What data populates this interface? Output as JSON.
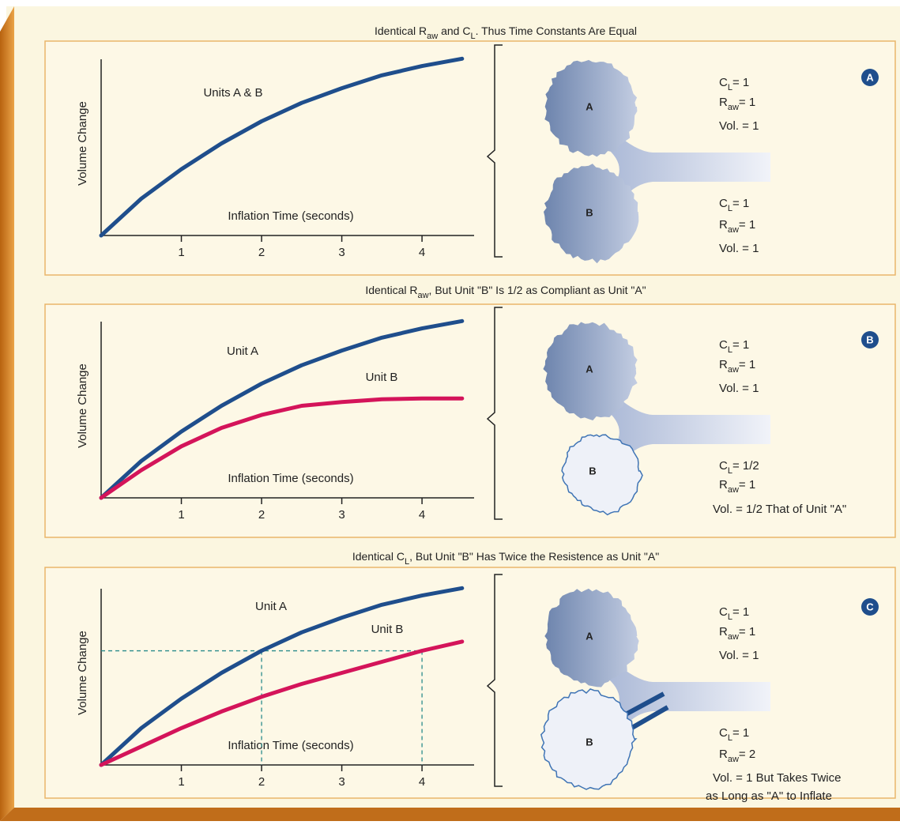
{
  "chart_data": [
    {
      "type": "line",
      "title": [
        "Identical R",
        "aw",
        " and C",
        "L",
        ". Thus Time Constants Are Equal"
      ],
      "y_label": "Volume Change",
      "x_label": "Inflation Time (seconds)",
      "x": [
        0,
        0.5,
        1,
        1.5,
        2,
        2.5,
        3,
        3.5,
        4,
        4.5
      ],
      "series": [
        {
          "name": "Units A & B",
          "color": "#1f4e8c",
          "values": [
            0,
            0.2,
            0.36,
            0.5,
            0.62,
            0.72,
            0.8,
            0.87,
            0.92,
            0.96
          ]
        }
      ],
      "xlim": [
        0,
        4.6
      ],
      "xticks": [
        1,
        2,
        3,
        4
      ],
      "ylim": [
        0,
        1
      ]
    },
    {
      "type": "line",
      "title": [
        "Identical R",
        "aw",
        ", But Unit \"B\" Is 1/2 as Compliant as Unit \"A\""
      ],
      "y_label": "Volume Change",
      "x_label": "Inflation Time (seconds)",
      "x": [
        0,
        0.5,
        1,
        1.5,
        2,
        2.5,
        3,
        3.5,
        4,
        4.5
      ],
      "series": [
        {
          "name": "Unit A",
          "color": "#1f4e8c",
          "values": [
            0,
            0.2,
            0.36,
            0.5,
            0.62,
            0.72,
            0.8,
            0.87,
            0.92,
            0.96
          ]
        },
        {
          "name": "Unit B",
          "color": "#d4145a",
          "values": [
            0,
            0.15,
            0.28,
            0.38,
            0.45,
            0.5,
            0.52,
            0.535,
            0.54,
            0.54
          ]
        }
      ],
      "xlim": [
        0,
        4.6
      ],
      "xticks": [
        1,
        2,
        3,
        4
      ],
      "ylim": [
        0,
        1
      ]
    },
    {
      "type": "line",
      "title": [
        "Identical C",
        "L",
        ", But Unit \"B\" Has Twice the Resistence as Unit \"A\""
      ],
      "y_label": "Volume Change",
      "x_label": "Inflation Time (seconds)",
      "x": [
        0,
        0.5,
        1,
        1.5,
        2,
        2.5,
        3,
        3.5,
        4,
        4.5
      ],
      "series": [
        {
          "name": "Unit A",
          "color": "#1f4e8c",
          "values": [
            0,
            0.2,
            0.36,
            0.5,
            0.62,
            0.72,
            0.8,
            0.87,
            0.92,
            0.96
          ]
        },
        {
          "name": "Unit  B",
          "color": "#d4145a",
          "values": [
            0,
            0.1,
            0.2,
            0.29,
            0.37,
            0.44,
            0.5,
            0.56,
            0.62,
            0.67
          ]
        }
      ],
      "reference": {
        "x": [
          2,
          4
        ],
        "y": 0.62
      },
      "xlim": [
        0,
        4.6
      ],
      "xticks": [
        1,
        2,
        3,
        4
      ],
      "ylim": [
        0,
        1
      ]
    }
  ],
  "diagrams": [
    {
      "badge": "A",
      "units": [
        {
          "label": "A",
          "params": [
            [
              "C",
              "L",
              "= 1"
            ],
            [
              "R",
              "aw",
              "= 1"
            ],
            [
              "Vol. = 1"
            ]
          ]
        },
        {
          "label": "B",
          "params": [
            [
              "C",
              "L",
              "= 1"
            ],
            [
              "R",
              "aw",
              "= 1"
            ],
            [
              "Vol. = 1"
            ]
          ]
        }
      ]
    },
    {
      "badge": "B",
      "units": [
        {
          "label": "A",
          "params": [
            [
              "C",
              "L",
              "= 1"
            ],
            [
              "R",
              "aw",
              "= 1"
            ],
            [
              "Vol. = 1"
            ]
          ]
        },
        {
          "label": "B",
          "params": [
            [
              "C",
              "L",
              "= 1/2"
            ],
            [
              "R",
              "aw",
              "= 1"
            ],
            [
              "Vol. = 1/2 That of Unit \"A\""
            ]
          ]
        }
      ]
    },
    {
      "badge": "C",
      "units": [
        {
          "label": "A",
          "params": [
            [
              "C",
              "L",
              "= 1"
            ],
            [
              "R",
              "aw",
              "= 1"
            ],
            [
              "Vol. = 1"
            ]
          ]
        },
        {
          "label": "B",
          "params": [
            [
              "C",
              "L",
              "= 1"
            ],
            [
              "R",
              "aw",
              "= 2"
            ],
            [
              "Vol. = 1 But Takes Twice"
            ],
            [
              "as Long as \"A\" to Inflate"
            ]
          ]
        }
      ]
    }
  ]
}
